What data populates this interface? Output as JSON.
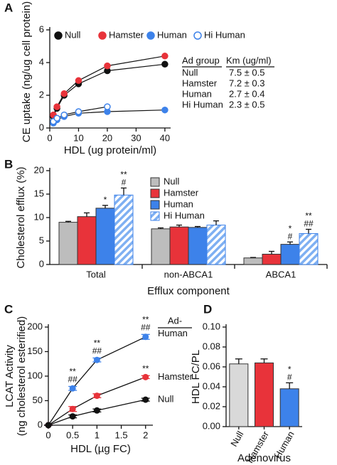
{
  "chart_data": [
    {
      "type": "scatter",
      "panel": "A",
      "ylabel": "CE uptake (ng/ug cell protein)",
      "xlabel": "HDL (ug protein/ml)",
      "x": [
        1.25,
        2.5,
        5,
        10,
        20,
        40
      ],
      "series": [
        {
          "name": "Null",
          "color": "#111111",
          "marker": "filled",
          "values": [
            0.7,
            1.2,
            2.0,
            2.7,
            3.5,
            3.9
          ]
        },
        {
          "name": "Hamster",
          "color": "#e8333a",
          "marker": "filled",
          "values": [
            0.8,
            1.3,
            2.1,
            2.9,
            3.8,
            4.4
          ]
        },
        {
          "name": "Human",
          "color": "#3d82ea",
          "marker": "filled",
          "values": [
            0.3,
            0.5,
            0.7,
            0.9,
            1.0,
            1.1
          ]
        },
        {
          "name": "Hi Human",
          "color": "#3d82ea",
          "marker": "open",
          "values": [
            0.4,
            0.6,
            0.8,
            1.0,
            1.3,
            null
          ]
        }
      ],
      "xlim": [
        0,
        42
      ],
      "ylim": [
        0,
        6
      ],
      "xticks": [
        0,
        10,
        20,
        30,
        40
      ],
      "yticks": [
        0,
        2,
        4,
        6
      ],
      "km_table": {
        "header": [
          "Ad group",
          "Km (ug/ml)"
        ],
        "rows": [
          [
            "Null",
            "7.5 ± 0.5"
          ],
          [
            "Hamster",
            "7.2 ± 0.3"
          ],
          [
            "Human",
            "2.7 ± 0.4"
          ],
          [
            "Hi Human",
            "2.3 ± 0.5"
          ]
        ]
      }
    },
    {
      "type": "bar",
      "panel": "B",
      "ylabel": "Cholesterol efflux (%)",
      "xlabel": "Efflux component",
      "categories": [
        "Total",
        "non-ABCA1",
        "ABCA1"
      ],
      "series": [
        {
          "name": "Null",
          "color": "#bdbdbd",
          "hatch": false,
          "values": [
            9.0,
            7.6,
            1.4
          ],
          "errors": [
            0.2,
            0.2,
            0.1
          ],
          "annotations": [
            null,
            null,
            null
          ]
        },
        {
          "name": "Hamster",
          "color": "#e8333a",
          "hatch": false,
          "values": [
            10.2,
            8.0,
            2.2
          ],
          "errors": [
            0.8,
            0.4,
            0.6
          ],
          "annotations": [
            null,
            null,
            null
          ]
        },
        {
          "name": "Human",
          "color": "#3d82ea",
          "hatch": false,
          "values": [
            12.0,
            7.9,
            4.3
          ],
          "errors": [
            0.6,
            0.2,
            0.5
          ],
          "annotations": [
            [
              "*"
            ],
            null,
            [
              "*",
              "#"
            ]
          ]
        },
        {
          "name": "Hi Human",
          "color": "#3d82ea",
          "hatch": true,
          "values": [
            14.8,
            8.4,
            6.6
          ],
          "errors": [
            1.5,
            0.9,
            0.9
          ],
          "annotations": [
            [
              "**",
              "#"
            ],
            null,
            [
              "**",
              "##"
            ]
          ]
        }
      ],
      "ylim": [
        0,
        20
      ],
      "yticks": [
        0,
        5,
        10,
        15,
        20
      ]
    },
    {
      "type": "line",
      "panel": "C",
      "ylabel": [
        "LCAT Activity",
        "(ng cholesterol esterified)"
      ],
      "xlabel": "HDL (µg FC)",
      "legend_title": "Ad-",
      "x": [
        0,
        0.5,
        1,
        2
      ],
      "series": [
        {
          "name": "Human",
          "color": "#3d82ea",
          "values": [
            0,
            75,
            133,
            180
          ],
          "errors": [
            0,
            4,
            4,
            5
          ],
          "annotations": [
            null,
            [
              "**",
              "##"
            ],
            [
              "**",
              "##"
            ],
            [
              "**",
              "##"
            ]
          ]
        },
        {
          "name": "Hamster",
          "color": "#e8333a",
          "values": [
            0,
            33,
            60,
            98
          ],
          "errors": [
            0,
            5,
            4,
            3
          ],
          "annotations": [
            null,
            null,
            null,
            [
              "**"
            ]
          ]
        },
        {
          "name": "Null",
          "color": "#111111",
          "values": [
            0,
            18,
            30,
            52
          ],
          "errors": [
            0,
            3,
            3,
            3
          ],
          "annotations": [
            null,
            null,
            null,
            null
          ]
        }
      ],
      "xlim": [
        0,
        2.15
      ],
      "ylim": [
        0,
        200
      ],
      "xticks": [
        0,
        0.5,
        1,
        1.5,
        2
      ],
      "yticks": [
        0,
        50,
        100,
        150,
        200
      ]
    },
    {
      "type": "bar",
      "panel": "D",
      "ylabel": "HDL FC/PL",
      "xlabel": "Adenovirus",
      "categories": [
        "Null",
        "Hamster",
        "Human"
      ],
      "values": [
        0.063,
        0.064,
        0.038
      ],
      "errors": [
        0.005,
        0.004,
        0.006
      ],
      "colors": [
        "#d9d9d9",
        "#e8333a",
        "#3d82ea"
      ],
      "annotations": [
        null,
        null,
        [
          "*",
          "#"
        ]
      ],
      "ylim": [
        0,
        0.1
      ],
      "yticks": [
        {
          "value": 0,
          "label": "0.00"
        },
        {
          "value": 0.02,
          "label": "0.02"
        },
        {
          "value": 0.04,
          "label": "0.04"
        },
        {
          "value": 0.06,
          "label": "0.06"
        },
        {
          "value": 0.08,
          "label": "0.08"
        },
        {
          "value": 0.1,
          "label": "0.10"
        }
      ]
    }
  ]
}
